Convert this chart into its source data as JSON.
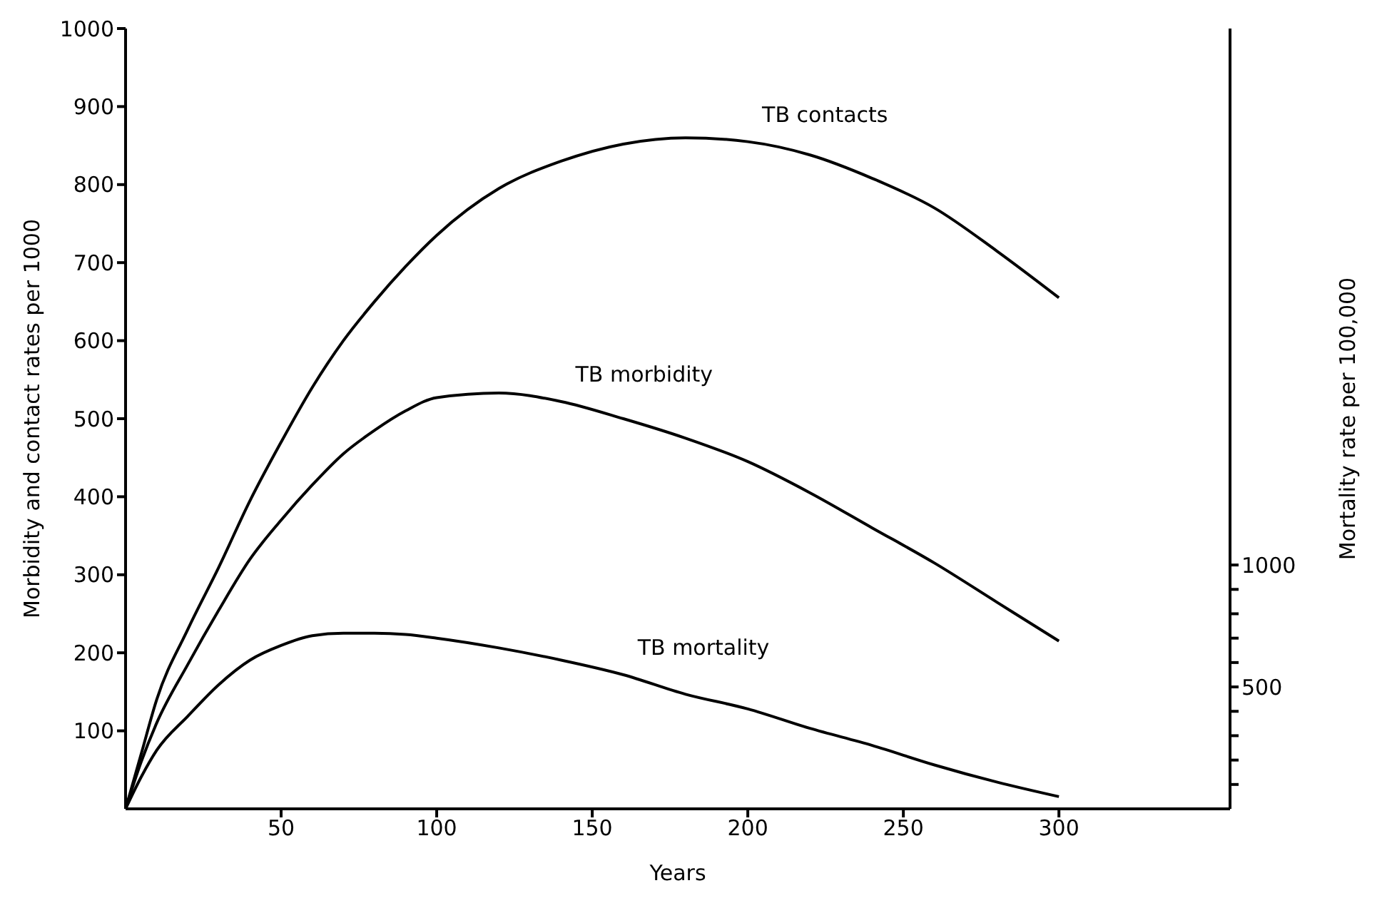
{
  "chart_data": {
    "type": "line",
    "xlabel": "Years",
    "ylabel": "Morbidity and contact rates per 1000",
    "y2label": "Mortality rate per 100,000",
    "x": [
      0,
      5,
      10,
      20,
      30,
      40,
      50,
      60,
      70,
      80,
      90,
      100,
      120,
      140,
      160,
      180,
      200,
      220,
      240,
      260,
      280,
      300
    ],
    "series": [
      {
        "name": "TB contacts",
        "color": "#000000",
        "values": [
          0,
          70,
          140,
          230,
          310,
          395,
          470,
          540,
          600,
          650,
          695,
          735,
          795,
          830,
          852,
          860,
          855,
          838,
          808,
          770,
          715,
          655
        ]
      },
      {
        "name": "TB morbidity",
        "color": "#000000",
        "values": [
          0,
          60,
          110,
          185,
          255,
          320,
          370,
          415,
          455,
          485,
          510,
          527,
          533,
          522,
          500,
          475,
          445,
          405,
          360,
          315,
          265,
          215
        ]
      },
      {
        "name": "TB mortality",
        "color": "#000000",
        "axis": "y2",
        "values": [
          0,
          130,
          240,
          380,
          510,
          610,
          670,
          710,
          720,
          720,
          715,
          700,
          660,
          610,
          550,
          470,
          410,
          330,
          260,
          180,
          110,
          50
        ]
      }
    ],
    "xlim": [
      0,
      355
    ],
    "xticks": [
      50,
      100,
      150,
      200,
      250,
      300
    ],
    "ylim": [
      0,
      1000
    ],
    "yticks": [
      100,
      200,
      300,
      400,
      500,
      600,
      700,
      800,
      900,
      1000
    ],
    "y2lim": [
      0,
      3200
    ],
    "y2ticks": [
      {
        "value": 100,
        "label": null
      },
      {
        "value": 200,
        "label": null
      },
      {
        "value": 300,
        "label": null
      },
      {
        "value": 400,
        "label": null
      },
      500,
      {
        "value": 600,
        "label": null
      },
      {
        "value": 700,
        "label": null
      },
      {
        "value": 800,
        "label": null
      },
      {
        "value": 900,
        "label": null
      },
      1000
    ],
    "marker": "none",
    "line_style": "solid",
    "grid": false,
    "legend": false
  }
}
